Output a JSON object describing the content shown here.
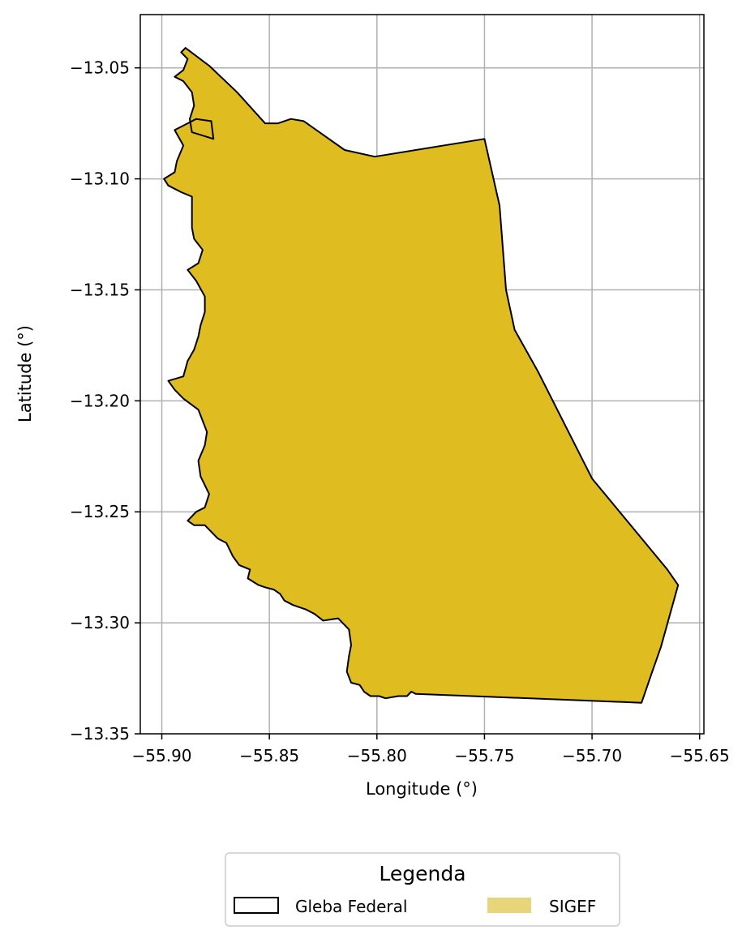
{
  "chart_data": {
    "type": "map",
    "xlabel": "Longitude (°)",
    "ylabel": "Latitude (°)",
    "xlim": [
      -55.91,
      -55.648
    ],
    "ylim": [
      -13.35,
      -13.026
    ],
    "grid": true,
    "x_ticks": [
      -55.9,
      -55.85,
      -55.8,
      -55.75,
      -55.7,
      -55.65
    ],
    "x_tick_labels": [
      "−55.90",
      "−55.85",
      "−55.80",
      "−55.75",
      "−55.70",
      "−55.65"
    ],
    "y_ticks": [
      -13.05,
      -13.1,
      -13.15,
      -13.2,
      -13.25,
      -13.3,
      -13.35
    ],
    "y_tick_labels": [
      "−13.05",
      "−13.10",
      "−13.15",
      "−13.20",
      "−13.25",
      "−13.30",
      "−13.35"
    ],
    "legend": {
      "title": "Legenda",
      "placement": "bottom-center",
      "entries": [
        {
          "label": "Gleba Federal",
          "style": "outline",
          "color": "#000000"
        },
        {
          "label": "SIGEF",
          "style": "fill",
          "color": "#E8D47A"
        }
      ]
    },
    "polygon_fill": "#DFBC20",
    "polygon_edge": "#000000",
    "polygon": [
      [
        -55.889,
        -13.041
      ],
      [
        -55.878,
        -13.049
      ],
      [
        -55.865,
        -13.061
      ],
      [
        -55.852,
        -13.075
      ],
      [
        -55.846,
        -13.075
      ],
      [
        -55.84,
        -13.073
      ],
      [
        -55.834,
        -13.074
      ],
      [
        -55.815,
        -13.087
      ],
      [
        -55.801,
        -13.09
      ],
      [
        -55.75,
        -13.082
      ],
      [
        -55.743,
        -13.112
      ],
      [
        -55.74,
        -13.15
      ],
      [
        -55.736,
        -13.168
      ],
      [
        -55.725,
        -13.187
      ],
      [
        -55.7,
        -13.235
      ],
      [
        -55.665,
        -13.276
      ],
      [
        -55.66,
        -13.283
      ],
      [
        -55.668,
        -13.311
      ],
      [
        -55.672,
        -13.322
      ],
      [
        -55.677,
        -13.336
      ],
      [
        -55.782,
        -13.332
      ],
      [
        -55.784,
        -13.331
      ],
      [
        -55.786,
        -13.333
      ],
      [
        -55.79,
        -13.333
      ],
      [
        -55.796,
        -13.334
      ],
      [
        -55.799,
        -13.333
      ],
      [
        -55.803,
        -13.333
      ],
      [
        -55.806,
        -13.331
      ],
      [
        -55.808,
        -13.328
      ],
      [
        -55.812,
        -13.327
      ],
      [
        -55.814,
        -13.322
      ],
      [
        -55.813,
        -13.315
      ],
      [
        -55.812,
        -13.31
      ],
      [
        -55.813,
        -13.303
      ],
      [
        -55.818,
        -13.298
      ],
      [
        -55.825,
        -13.299
      ],
      [
        -55.829,
        -13.296
      ],
      [
        -55.833,
        -13.294
      ],
      [
        -55.839,
        -13.292
      ],
      [
        -55.843,
        -13.29
      ],
      [
        -55.845,
        -13.287
      ],
      [
        -55.848,
        -13.285
      ],
      [
        -55.852,
        -13.284
      ],
      [
        -55.855,
        -13.283
      ],
      [
        -55.86,
        -13.28
      ],
      [
        -55.859,
        -13.276
      ],
      [
        -55.864,
        -13.274
      ],
      [
        -55.867,
        -13.27
      ],
      [
        -55.87,
        -13.264
      ],
      [
        -55.874,
        -13.262
      ],
      [
        -55.88,
        -13.256
      ],
      [
        -55.885,
        -13.256
      ],
      [
        -55.888,
        -13.254
      ],
      [
        -55.884,
        -13.25
      ],
      [
        -55.88,
        -13.248
      ],
      [
        -55.878,
        -13.242
      ],
      [
        -55.882,
        -13.234
      ],
      [
        -55.883,
        -13.227
      ],
      [
        -55.88,
        -13.22
      ],
      [
        -55.879,
        -13.214
      ],
      [
        -55.881,
        -13.209
      ],
      [
        -55.883,
        -13.204
      ],
      [
        -55.89,
        -13.199
      ],
      [
        -55.894,
        -13.195
      ],
      [
        -55.897,
        -13.191
      ],
      [
        -55.89,
        -13.189
      ],
      [
        -55.888,
        -13.182
      ],
      [
        -55.885,
        -13.177
      ],
      [
        -55.883,
        -13.171
      ],
      [
        -55.882,
        -13.166
      ],
      [
        -55.88,
        -13.16
      ],
      [
        -55.88,
        -13.153
      ],
      [
        -55.884,
        -13.146
      ],
      [
        -55.888,
        -13.141
      ],
      [
        -55.883,
        -13.138
      ],
      [
        -55.881,
        -13.132
      ],
      [
        -55.885,
        -13.127
      ],
      [
        -55.886,
        -13.122
      ],
      [
        -55.886,
        -13.114
      ],
      [
        -55.886,
        -13.108
      ],
      [
        -55.891,
        -13.106
      ],
      [
        -55.897,
        -13.103
      ],
      [
        -55.899,
        -13.1
      ],
      [
        -55.894,
        -13.097
      ],
      [
        -55.893,
        -13.092
      ],
      [
        -55.89,
        -13.085
      ],
      [
        -55.894,
        -13.078
      ],
      [
        -55.888,
        -13.075
      ],
      [
        -55.884,
        -13.073
      ],
      [
        -55.877,
        -13.074
      ],
      [
        -55.876,
        -13.082
      ],
      [
        -55.886,
        -13.079
      ],
      [
        -55.887,
        -13.073
      ],
      [
        -55.885,
        -13.067
      ],
      [
        -55.886,
        -13.061
      ],
      [
        -55.89,
        -13.056
      ],
      [
        -55.894,
        -13.054
      ],
      [
        -55.89,
        -13.051
      ],
      [
        -55.888,
        -13.046
      ],
      [
        -55.891,
        -13.043
      ]
    ]
  }
}
